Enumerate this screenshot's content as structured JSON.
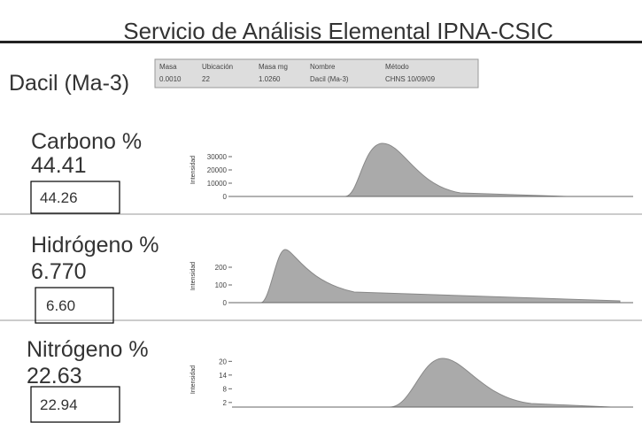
{
  "header": {
    "title": "Servicio de Análisis Elemental IPNA-CSIC",
    "sample": "Dacil (Ma-3)"
  },
  "table": {
    "headers": [
      "Masa",
      "Ubicación",
      "Masa mg",
      "Nombre",
      "Método"
    ],
    "rows": [
      [
        "0.0010",
        "22",
        "1.0260",
        "Dacil (Ma-3)",
        "CHNS 10/09/09"
      ]
    ]
  },
  "elements": [
    {
      "name": "Carbono %",
      "value": "44.41",
      "boxed": "44.26",
      "axis_label": "Intensidad",
      "ylim": [
        0,
        40000
      ],
      "yticks": [
        0,
        10000,
        20000,
        30000
      ]
    },
    {
      "name": "Hidrógeno %",
      "value": "6.770",
      "boxed": "6.60",
      "axis_label": "Intensidad",
      "ylim": [
        0,
        300
      ],
      "yticks": [
        0,
        100,
        200
      ]
    },
    {
      "name": "Nitrógeno %",
      "value": "22.63",
      "boxed": "22.94",
      "axis_label": "Intensidad",
      "ylim": [
        0,
        24
      ],
      "yticks": [
        2,
        8,
        14,
        20
      ]
    }
  ]
}
